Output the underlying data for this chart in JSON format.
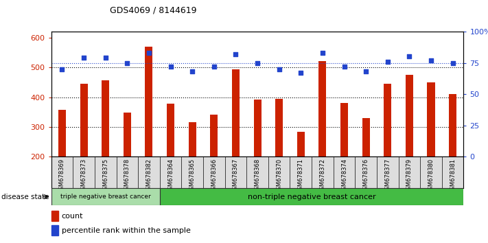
{
  "title": "GDS4069 / 8144619",
  "categories": [
    "GSM678369",
    "GSM678373",
    "GSM678375",
    "GSM678378",
    "GSM678382",
    "GSM678364",
    "GSM678365",
    "GSM678366",
    "GSM678367",
    "GSM678368",
    "GSM678370",
    "GSM678371",
    "GSM678372",
    "GSM678374",
    "GSM678376",
    "GSM678377",
    "GSM678379",
    "GSM678380",
    "GSM678381"
  ],
  "counts": [
    358,
    445,
    457,
    348,
    570,
    378,
    317,
    342,
    493,
    393,
    395,
    283,
    522,
    381,
    330,
    445,
    474,
    449,
    410
  ],
  "percentiles": [
    70,
    79,
    79,
    75,
    83,
    72,
    68,
    72,
    82,
    75,
    70,
    67,
    83,
    72,
    68,
    76,
    80,
    77,
    75
  ],
  "ylim_left": [
    200,
    620
  ],
  "ylim_right": [
    0,
    100
  ],
  "yticks_left": [
    200,
    300,
    400,
    500,
    600
  ],
  "yticks_right": [
    0,
    25,
    50,
    75,
    100
  ],
  "bar_color": "#CC2200",
  "dot_color": "#2244CC",
  "group1_count": 5,
  "group1_label": "triple negative breast cancer",
  "group2_label": "non-triple negative breast cancer",
  "group1_color": "#AADDAA",
  "group2_color": "#44BB44",
  "disease_state_label": "disease state",
  "legend_count_label": "count",
  "legend_percentile_label": "percentile rank within the sample",
  "bg_color": "#FFFFFF",
  "plot_bg_color": "#FFFFFF",
  "tick_label_color_left": "#CC2200",
  "tick_label_color_right": "#2244CC",
  "xtick_bg_color": "#DDDDDD"
}
